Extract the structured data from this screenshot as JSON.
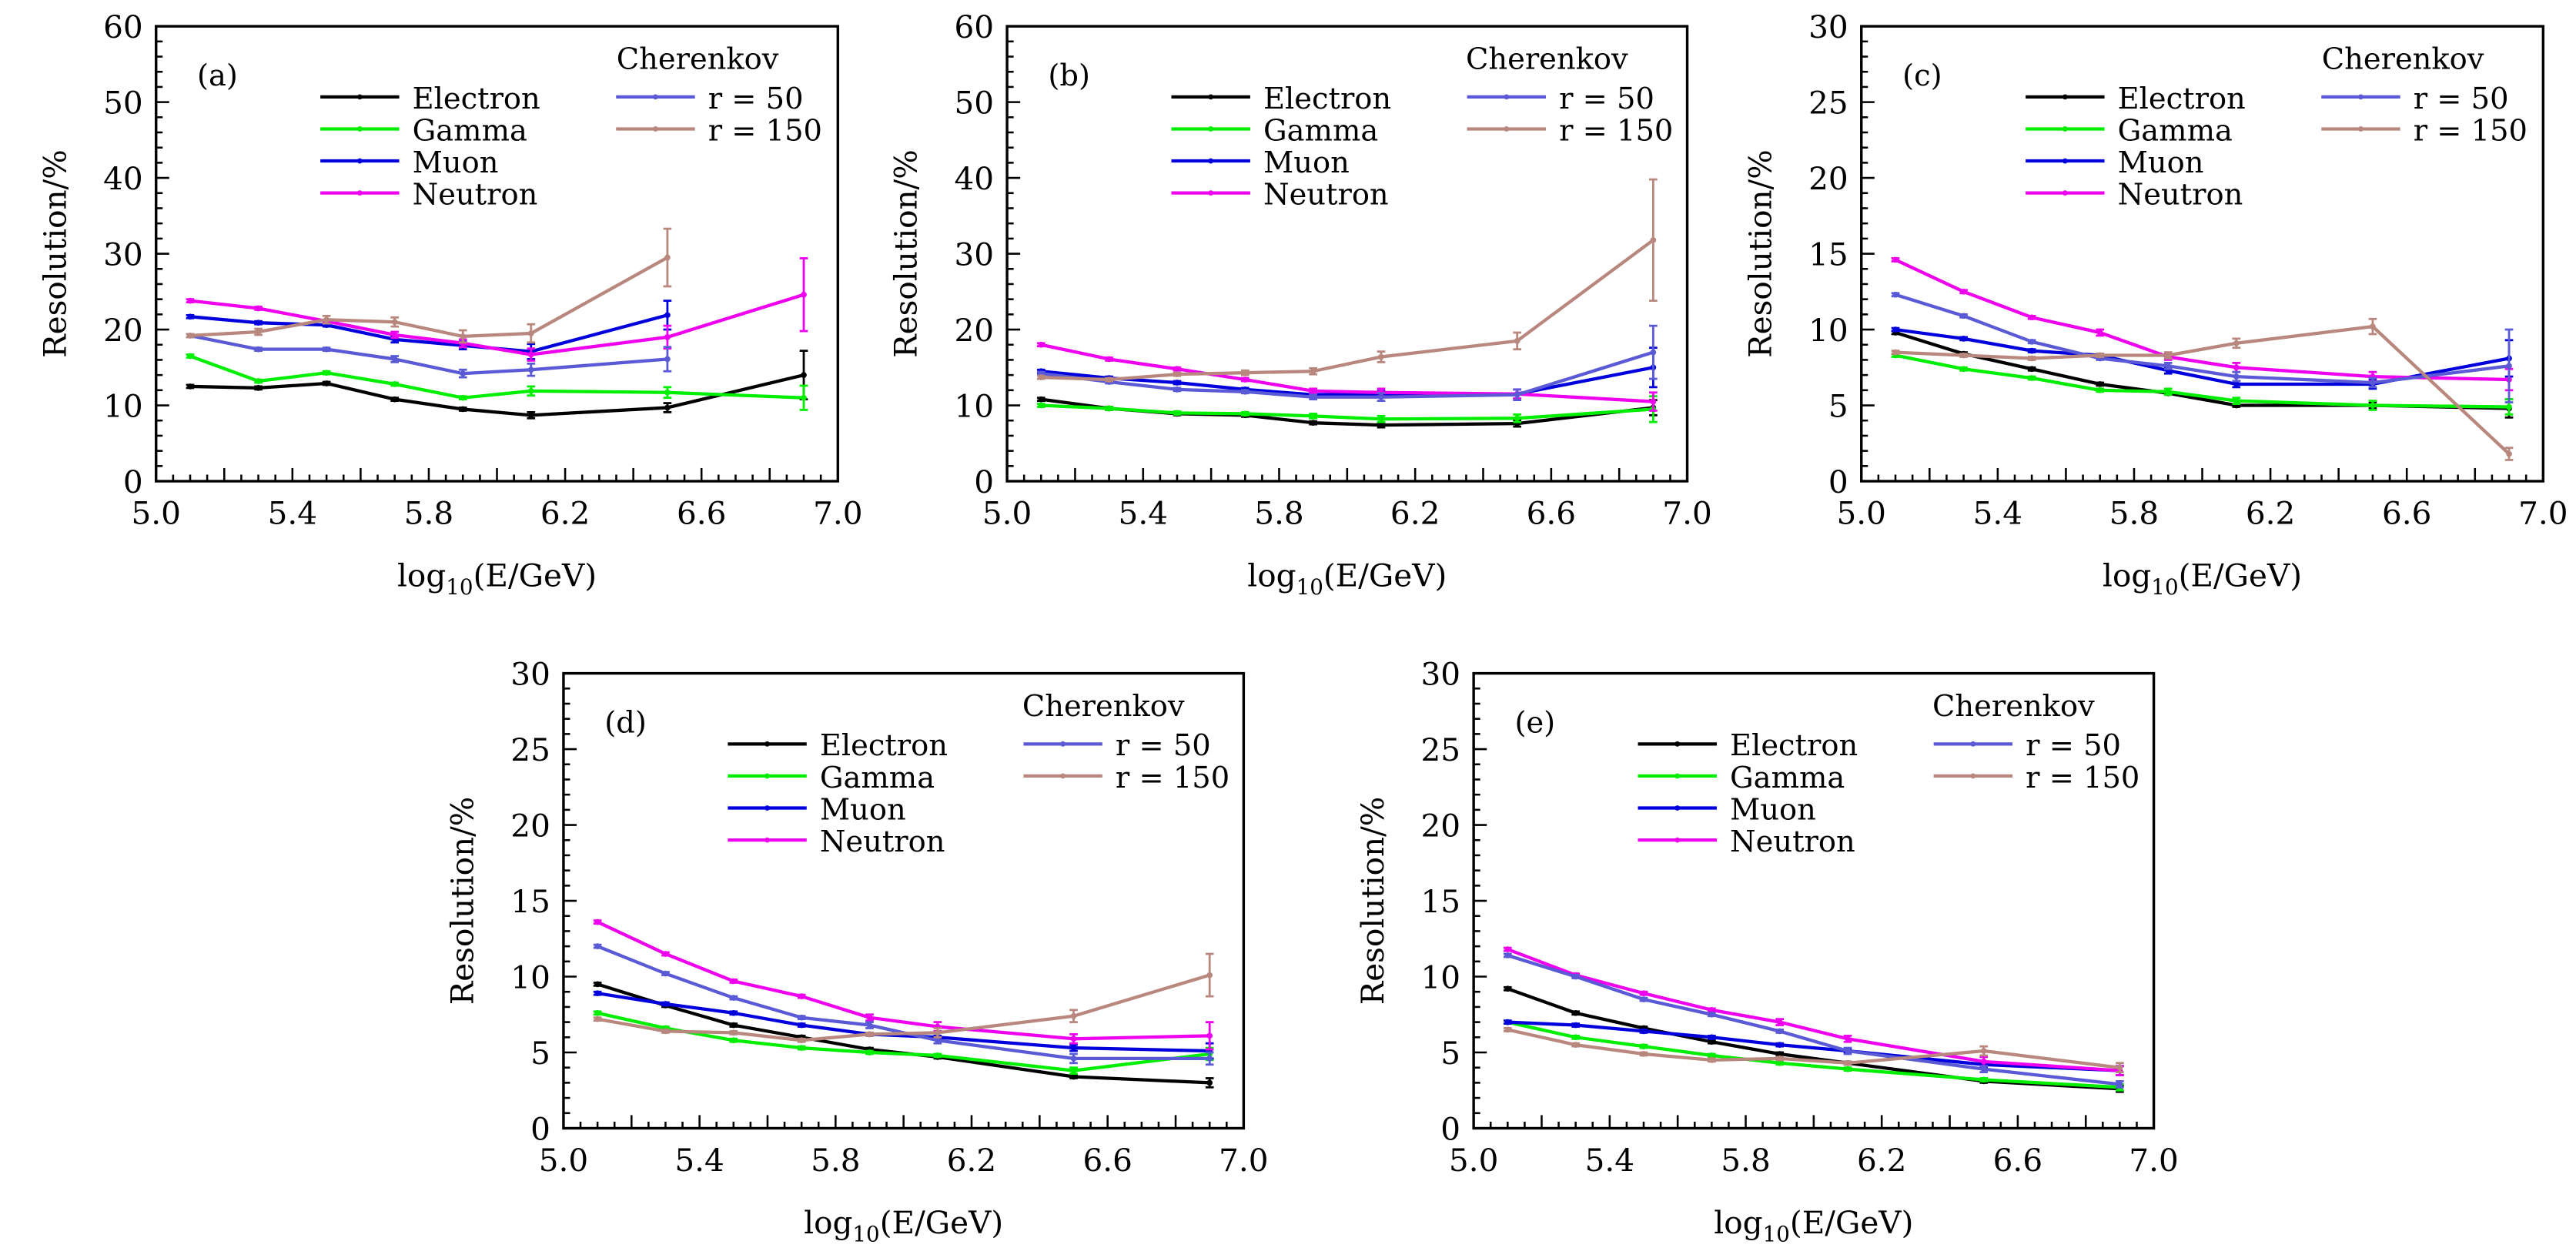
{
  "figure": {
    "background": "#ffffff"
  },
  "legend": {
    "title": "Cherenkov",
    "entries": [
      {
        "key": "electron",
        "label": "Electron",
        "color": "#000000"
      },
      {
        "key": "gamma",
        "label": "Gamma",
        "color": "#00ee00"
      },
      {
        "key": "muon",
        "label": "Muon",
        "color": "#0000dd"
      },
      {
        "key": "neutron",
        "label": "Neutron",
        "color": "#ee00ee"
      },
      {
        "key": "r50",
        "label": "r = 50",
        "color": "#5a5ad6"
      },
      {
        "key": "r150",
        "label": "r = 150",
        "color": "#b8877e"
      }
    ]
  },
  "chart_data": [
    {
      "type": "line",
      "panel": "(a)",
      "xlabel": "log10(E/GeV)",
      "ylabel": "Resolution/%",
      "xlim": [
        5.0,
        7.0
      ],
      "ylim": [
        0,
        60
      ],
      "xticks": [
        "5.0",
        "5.4",
        "5.8",
        "6.2",
        "6.6",
        "7.0"
      ],
      "yticks": [
        "0",
        "10",
        "20",
        "30",
        "40",
        "50",
        "60"
      ],
      "legend_title": "Cherenkov",
      "legend_position": "top-right",
      "x": [
        5.1,
        5.3,
        5.5,
        5.7,
        5.9,
        6.1,
        6.5,
        6.9
      ],
      "series": [
        {
          "name": "Electron",
          "key": "electron",
          "values": [
            12.5,
            12.3,
            12.9,
            10.8,
            9.5,
            8.7,
            9.7,
            14.0
          ],
          "errors": [
            0.2,
            0.2,
            0.2,
            0.2,
            0.2,
            0.4,
            0.6,
            3.2
          ]
        },
        {
          "name": "Gamma",
          "key": "gamma",
          "values": [
            16.5,
            13.2,
            14.3,
            12.8,
            11.0,
            11.9,
            11.7,
            11.0
          ],
          "errors": [
            0.2,
            0.2,
            0.2,
            0.2,
            0.2,
            0.6,
            0.7,
            1.6
          ]
        },
        {
          "name": "Muon",
          "key": "muon",
          "values": [
            21.7,
            20.9,
            20.6,
            18.7,
            17.9,
            17.1,
            21.9,
            null
          ],
          "errors": [
            0.2,
            0.2,
            0.2,
            0.4,
            0.5,
            1.0,
            1.9,
            null
          ]
        },
        {
          "name": "Neutron",
          "key": "neutron",
          "values": [
            23.8,
            22.8,
            21.1,
            19.3,
            18.2,
            16.7,
            19.0,
            24.6
          ],
          "errors": [
            0.2,
            0.2,
            0.2,
            0.4,
            0.5,
            0.8,
            1.5,
            4.8
          ]
        },
        {
          "name": "r = 50",
          "key": "r50",
          "values": [
            19.2,
            17.4,
            17.4,
            16.1,
            14.2,
            14.7,
            16.1,
            null
          ],
          "errors": [
            0.2,
            0.2,
            0.2,
            0.4,
            0.5,
            0.8,
            1.6,
            null
          ]
        },
        {
          "name": "r = 150",
          "key": "r150",
          "values": [
            19.2,
            19.7,
            21.3,
            21.0,
            19.1,
            19.5,
            29.5,
            null
          ],
          "errors": [
            0.2,
            0.4,
            0.5,
            0.6,
            0.8,
            1.2,
            3.8,
            null
          ]
        }
      ]
    },
    {
      "type": "line",
      "panel": "(b)",
      "xlabel": "log10(E/GeV)",
      "ylabel": "Resolution/%",
      "xlim": [
        5.0,
        7.0
      ],
      "ylim": [
        0,
        60
      ],
      "xticks": [
        "5.0",
        "5.4",
        "5.8",
        "6.2",
        "6.6",
        "7.0"
      ],
      "yticks": [
        "0",
        "10",
        "20",
        "30",
        "40",
        "50",
        "60"
      ],
      "legend_title": "Cherenkov",
      "legend_position": "top-right",
      "x": [
        5.1,
        5.3,
        5.5,
        5.7,
        5.9,
        6.1,
        6.5,
        6.9
      ],
      "series": [
        {
          "name": "Electron",
          "key": "electron",
          "values": [
            10.8,
            9.6,
            8.9,
            8.7,
            7.7,
            7.4,
            7.6,
            9.7
          ],
          "errors": [
            0.2,
            0.2,
            0.2,
            0.2,
            0.2,
            0.3,
            0.4,
            1.0
          ]
        },
        {
          "name": "Gamma",
          "key": "gamma",
          "values": [
            10.0,
            9.6,
            9.0,
            8.9,
            8.6,
            8.2,
            8.3,
            9.5
          ],
          "errors": [
            0.2,
            0.2,
            0.2,
            0.2,
            0.3,
            0.4,
            0.5,
            1.7
          ]
        },
        {
          "name": "Muon",
          "key": "muon",
          "values": [
            14.5,
            13.6,
            13.0,
            12.1,
            11.4,
            11.5,
            11.5,
            15.0
          ],
          "errors": [
            0.2,
            0.2,
            0.2,
            0.2,
            0.3,
            0.4,
            0.6,
            2.6
          ]
        },
        {
          "name": "Neutron",
          "key": "neutron",
          "values": [
            18.0,
            16.1,
            14.8,
            13.4,
            11.9,
            11.7,
            11.5,
            10.5
          ],
          "errors": [
            0.2,
            0.2,
            0.2,
            0.2,
            0.3,
            0.5,
            0.6,
            1.2
          ]
        },
        {
          "name": "r = 50",
          "key": "r50",
          "values": [
            14.2,
            13.1,
            12.1,
            11.8,
            11.1,
            11.1,
            11.4,
            17.0
          ],
          "errors": [
            0.2,
            0.2,
            0.2,
            0.2,
            0.3,
            0.5,
            0.7,
            3.5
          ]
        },
        {
          "name": "r = 150",
          "key": "r150",
          "values": [
            13.7,
            13.4,
            14.1,
            14.3,
            14.5,
            16.4,
            18.5,
            31.8
          ],
          "errors": [
            0.2,
            0.2,
            0.2,
            0.3,
            0.4,
            0.7,
            1.1,
            8.0
          ]
        }
      ]
    },
    {
      "type": "line",
      "panel": "(c)",
      "xlabel": "log10(E/GeV)",
      "ylabel": "Resolution/%",
      "xlim": [
        5.0,
        7.0
      ],
      "ylim": [
        0,
        30
      ],
      "xticks": [
        "5.0",
        "5.4",
        "5.8",
        "6.2",
        "6.6",
        "7.0"
      ],
      "yticks": [
        "0",
        "5",
        "10",
        "15",
        "20",
        "25",
        "30"
      ],
      "legend_title": "Cherenkov",
      "legend_position": "top-right",
      "x": [
        5.1,
        5.3,
        5.5,
        5.7,
        5.9,
        6.1,
        6.5,
        6.9
      ],
      "series": [
        {
          "name": "Electron",
          "key": "electron",
          "values": [
            9.8,
            8.4,
            7.4,
            6.4,
            5.8,
            5.0,
            5.0,
            4.8
          ],
          "errors": [
            0.1,
            0.1,
            0.1,
            0.1,
            0.1,
            0.1,
            0.2,
            0.6
          ]
        },
        {
          "name": "Gamma",
          "key": "gamma",
          "values": [
            8.3,
            7.4,
            6.8,
            6.0,
            5.9,
            5.3,
            5.0,
            4.9
          ],
          "errors": [
            0.1,
            0.1,
            0.1,
            0.1,
            0.2,
            0.2,
            0.3,
            0.5
          ]
        },
        {
          "name": "Muon",
          "key": "muon",
          "values": [
            10.0,
            9.4,
            8.6,
            8.3,
            7.3,
            6.4,
            6.4,
            8.1
          ],
          "errors": [
            0.1,
            0.1,
            0.1,
            0.1,
            0.2,
            0.2,
            0.3,
            1.2
          ]
        },
        {
          "name": "Neutron",
          "key": "neutron",
          "values": [
            14.6,
            12.5,
            10.8,
            9.8,
            8.2,
            7.5,
            6.9,
            6.7
          ],
          "errors": [
            0.1,
            0.1,
            0.1,
            0.2,
            0.2,
            0.3,
            0.3,
            0.7
          ]
        },
        {
          "name": "r = 50",
          "key": "r50",
          "values": [
            12.3,
            10.9,
            9.2,
            8.1,
            7.6,
            6.9,
            6.5,
            7.6
          ],
          "errors": [
            0.1,
            0.1,
            0.1,
            0.1,
            0.2,
            0.3,
            0.3,
            2.4
          ]
        },
        {
          "name": "r = 150",
          "key": "r150",
          "values": [
            8.5,
            8.3,
            8.1,
            8.3,
            8.3,
            9.1,
            10.2,
            1.8
          ],
          "errors": [
            0.1,
            0.1,
            0.1,
            0.1,
            0.2,
            0.3,
            0.5,
            0.4
          ]
        }
      ]
    },
    {
      "type": "line",
      "panel": "(d)",
      "xlabel": "log10(E/GeV)",
      "ylabel": "Resolution/%",
      "xlim": [
        5.0,
        7.0
      ],
      "ylim": [
        0,
        30
      ],
      "xticks": [
        "5.0",
        "5.4",
        "5.8",
        "6.2",
        "6.6",
        "7.0"
      ],
      "yticks": [
        "0",
        "5",
        "10",
        "15",
        "20",
        "25",
        "30"
      ],
      "legend_title": "Cherenkov",
      "legend_position": "top-right",
      "x": [
        5.1,
        5.3,
        5.5,
        5.7,
        5.9,
        6.1,
        6.5,
        6.9
      ],
      "series": [
        {
          "name": "Electron",
          "key": "electron",
          "values": [
            9.5,
            8.1,
            6.8,
            6.0,
            5.2,
            4.7,
            3.4,
            3.0
          ],
          "errors": [
            0.1,
            0.1,
            0.1,
            0.1,
            0.1,
            0.1,
            0.1,
            0.3
          ]
        },
        {
          "name": "Gamma",
          "key": "gamma",
          "values": [
            7.6,
            6.6,
            5.8,
            5.3,
            5.0,
            4.8,
            3.8,
            4.9
          ],
          "errors": [
            0.1,
            0.1,
            0.1,
            0.1,
            0.1,
            0.1,
            0.2,
            0.4
          ]
        },
        {
          "name": "Muon",
          "key": "muon",
          "values": [
            8.9,
            8.2,
            7.6,
            6.8,
            6.2,
            6.0,
            5.3,
            5.1
          ],
          "errors": [
            0.1,
            0.1,
            0.1,
            0.1,
            0.1,
            0.1,
            0.2,
            0.5
          ]
        },
        {
          "name": "Neutron",
          "key": "neutron",
          "values": [
            13.6,
            11.5,
            9.7,
            8.7,
            7.3,
            6.7,
            5.9,
            6.1
          ],
          "errors": [
            0.1,
            0.1,
            0.1,
            0.1,
            0.2,
            0.3,
            0.3,
            0.9
          ]
        },
        {
          "name": "r = 50",
          "key": "r50",
          "values": [
            12.0,
            10.2,
            8.6,
            7.3,
            6.8,
            5.8,
            4.6,
            4.6
          ],
          "errors": [
            0.1,
            0.1,
            0.1,
            0.1,
            0.2,
            0.2,
            0.3,
            0.4
          ]
        },
        {
          "name": "r = 150",
          "key": "r150",
          "values": [
            7.2,
            6.4,
            6.3,
            5.8,
            6.2,
            6.3,
            7.4,
            10.1
          ],
          "errors": [
            0.1,
            0.1,
            0.1,
            0.1,
            0.1,
            0.3,
            0.4,
            1.4
          ]
        }
      ]
    },
    {
      "type": "line",
      "panel": "(e)",
      "xlabel": "log10(E/GeV)",
      "ylabel": "Resolution/%",
      "xlim": [
        5.0,
        7.0
      ],
      "ylim": [
        0,
        30
      ],
      "xticks": [
        "5.0",
        "5.4",
        "5.8",
        "6.2",
        "6.6",
        "7.0"
      ],
      "yticks": [
        "0",
        "5",
        "10",
        "15",
        "20",
        "25",
        "30"
      ],
      "legend_title": "Cherenkov",
      "legend_position": "top-right",
      "x": [
        5.1,
        5.3,
        5.5,
        5.7,
        5.9,
        6.1,
        6.5,
        6.9
      ],
      "series": [
        {
          "name": "Electron",
          "key": "electron",
          "values": [
            9.2,
            7.6,
            6.6,
            5.7,
            4.9,
            4.3,
            3.1,
            2.6
          ],
          "errors": [
            0.1,
            0.1,
            0.1,
            0.1,
            0.1,
            0.1,
            0.1,
            0.2
          ]
        },
        {
          "name": "Gamma",
          "key": "gamma",
          "values": [
            7.0,
            6.0,
            5.4,
            4.8,
            4.3,
            3.9,
            3.2,
            2.7
          ],
          "errors": [
            0.1,
            0.1,
            0.1,
            0.1,
            0.1,
            0.1,
            0.1,
            0.2
          ]
        },
        {
          "name": "Muon",
          "key": "muon",
          "values": [
            7.0,
            6.8,
            6.4,
            6.0,
            5.5,
            5.1,
            4.2,
            3.8
          ],
          "errors": [
            0.1,
            0.1,
            0.1,
            0.1,
            0.1,
            0.1,
            0.2,
            0.3
          ]
        },
        {
          "name": "Neutron",
          "key": "neutron",
          "values": [
            11.8,
            10.1,
            8.9,
            7.8,
            7.0,
            5.9,
            4.4,
            3.8
          ],
          "errors": [
            0.1,
            0.1,
            0.1,
            0.1,
            0.2,
            0.2,
            0.3,
            0.3
          ]
        },
        {
          "name": "r = 50",
          "key": "r50",
          "values": [
            11.4,
            10.0,
            8.5,
            7.5,
            6.4,
            5.1,
            3.9,
            2.9
          ],
          "errors": [
            0.1,
            0.1,
            0.1,
            0.1,
            0.1,
            0.2,
            0.2,
            0.2
          ]
        },
        {
          "name": "r = 150",
          "key": "r150",
          "values": [
            6.5,
            5.5,
            4.9,
            4.5,
            4.6,
            4.3,
            5.1,
            4.0
          ],
          "errors": [
            0.1,
            0.1,
            0.1,
            0.1,
            0.1,
            0.1,
            0.3,
            0.3
          ]
        }
      ]
    }
  ]
}
